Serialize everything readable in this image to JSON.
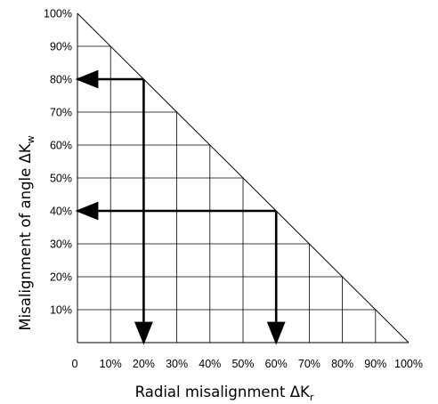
{
  "diagram": {
    "x_axis_label": "Radial misalignment ΔK",
    "x_axis_label_sub": "r",
    "y_axis_label": "Misalignment of angle ΔK",
    "y_axis_label_sub": "w",
    "x_ticks": [
      "0",
      "10%",
      "20%",
      "30%",
      "40%",
      "50%",
      "60%",
      "70%",
      "80%",
      "90%",
      "100%"
    ],
    "y_ticks": [
      "10%",
      "20%",
      "30%",
      "40%",
      "50%",
      "60%",
      "70%",
      "80%",
      "90%",
      "100%"
    ],
    "grid_step_percent": 10,
    "limit_line": {
      "from": [
        0,
        100
      ],
      "to": [
        100,
        0
      ]
    },
    "examples": [
      {
        "radial_percent": 20,
        "angle_percent": 80
      },
      {
        "radial_percent": 60,
        "angle_percent": 40
      }
    ],
    "line_color": "#000000"
  }
}
